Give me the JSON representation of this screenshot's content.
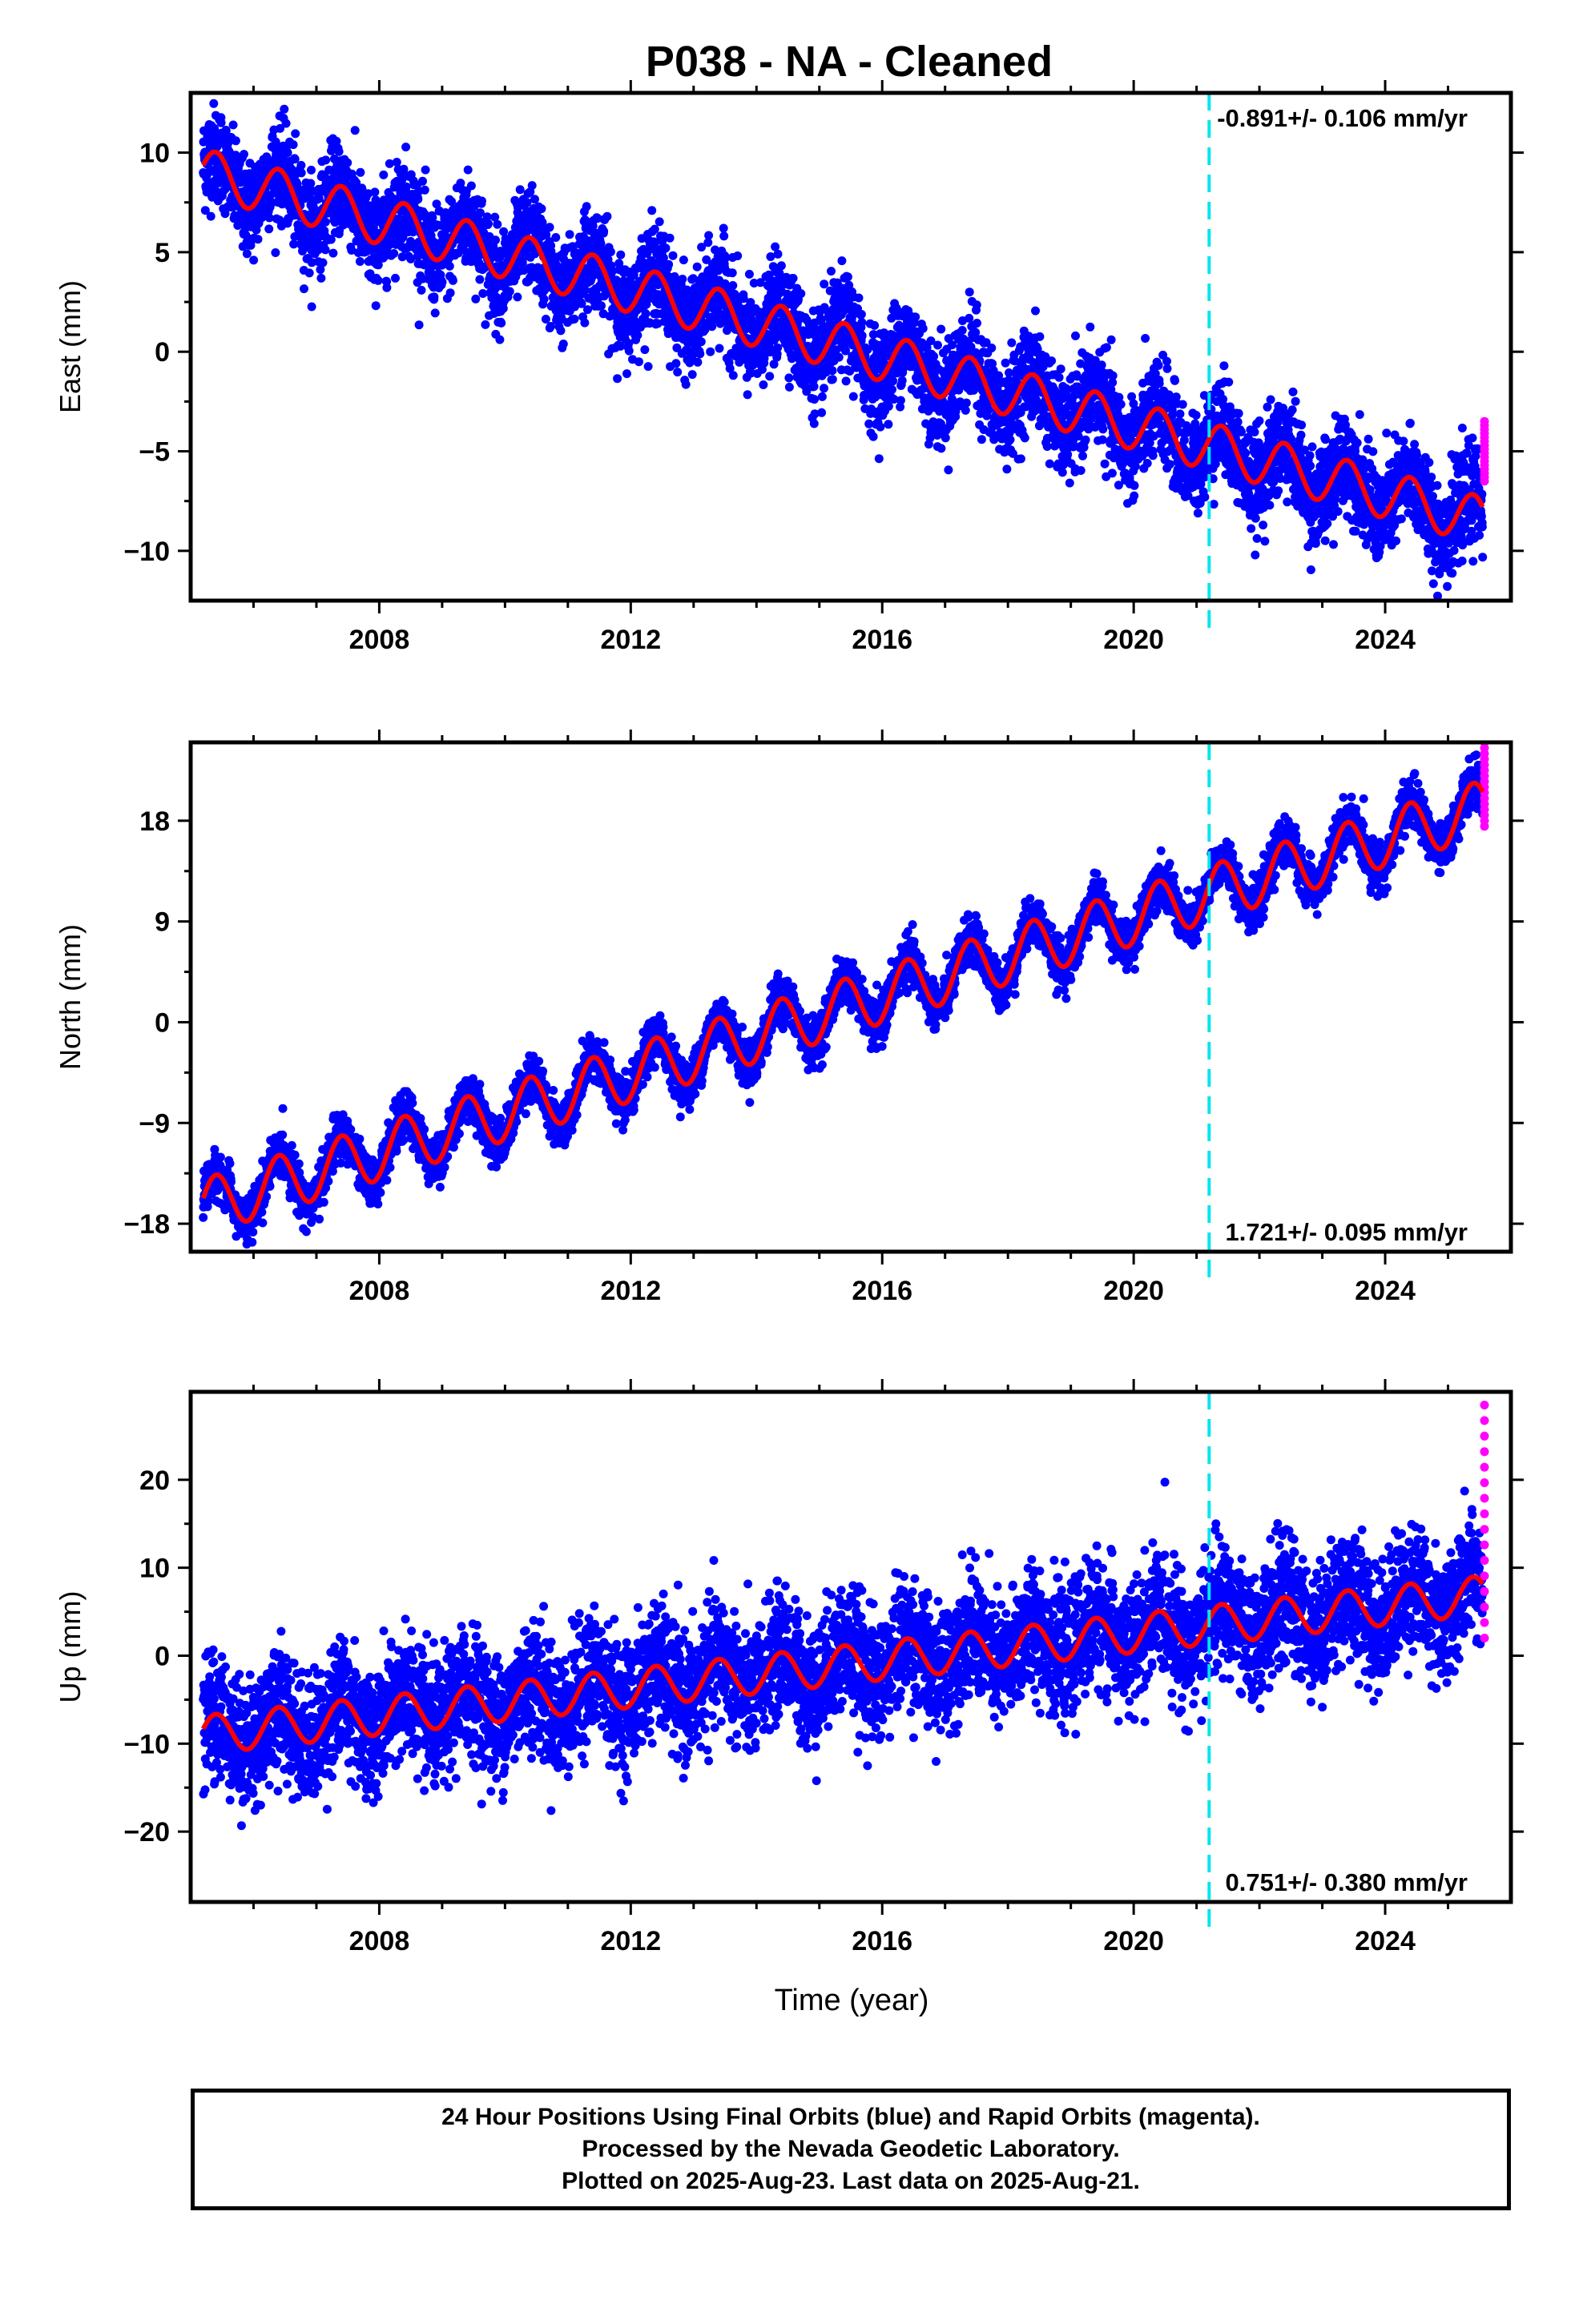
{
  "chart_data": {
    "title": "P038  - NA - Cleaned",
    "xlabel": "Time (year)",
    "type": "scatter",
    "series_colors": {
      "final_orbits": "#0000ff",
      "rapid_orbits": "#ff00ff",
      "fit": "#ff0000",
      "marker_line": "#00e5ee"
    },
    "x_range": [
      2005.0,
      2026.0
    ],
    "x_ticks": [
      "2008",
      "2012",
      "2016",
      "2020",
      "2024"
    ],
    "event_line_year": 2021.2,
    "panels": [
      {
        "name": "east",
        "ylabel": "East (mm)",
        "ylim": [
          -12.5,
          13.0
        ],
        "y_ticks": [
          "10",
          "5",
          "0",
          "−5",
          "−10"
        ],
        "y_tick_values": [
          10,
          5,
          0,
          -5,
          -10
        ],
        "rate_label": "-0.891+/- 0.106 mm/yr",
        "rate_label_position": "top-right",
        "trend_start": 9.0,
        "trend_slope": -0.86,
        "seasonal_amplitude": 1.2,
        "noise": 1.2,
        "rapid_orbit_range": [
          -6.5,
          -3.5
        ]
      },
      {
        "name": "north",
        "ylabel": "North (mm)",
        "ylim": [
          -20.5,
          25.0
        ],
        "y_ticks": [
          "18",
          "9",
          "0",
          "−9",
          "−18"
        ],
        "y_tick_values": [
          18,
          9,
          0,
          -9,
          -18
        ],
        "rate_label": "1.721+/- 0.095 mm/yr",
        "rate_label_position": "bottom-right",
        "trend_start": -16.5,
        "trend_slope": 1.75,
        "seasonal_amplitude": 2.5,
        "noise": 1.0,
        "rapid_orbit_range": [
          17.5,
          25.0
        ]
      },
      {
        "name": "up",
        "ylabel": "Up (mm)",
        "ylim": [
          -28.0,
          30.0
        ],
        "y_ticks": [
          "20",
          "10",
          "0",
          "−10",
          "−20"
        ],
        "y_tick_values": [
          20,
          10,
          0,
          -10,
          -20
        ],
        "rate_label": "0.751+/- 0.380 mm/yr",
        "rate_label_position": "bottom-right",
        "trend_start": -9.0,
        "trend_slope": 0.78,
        "seasonal_amplitude": 2.2,
        "noise": 3.5,
        "rapid_orbit_range": [
          2.0,
          28.5
        ]
      }
    ]
  },
  "caption": {
    "line1": "24 Hour Positions Using Final Orbits (blue) and Rapid Orbits (magenta).",
    "line2": "Processed by the Nevada Geodetic Laboratory.",
    "line3": "Plotted on 2025-Aug-23. Last data on 2025-Aug-21."
  }
}
